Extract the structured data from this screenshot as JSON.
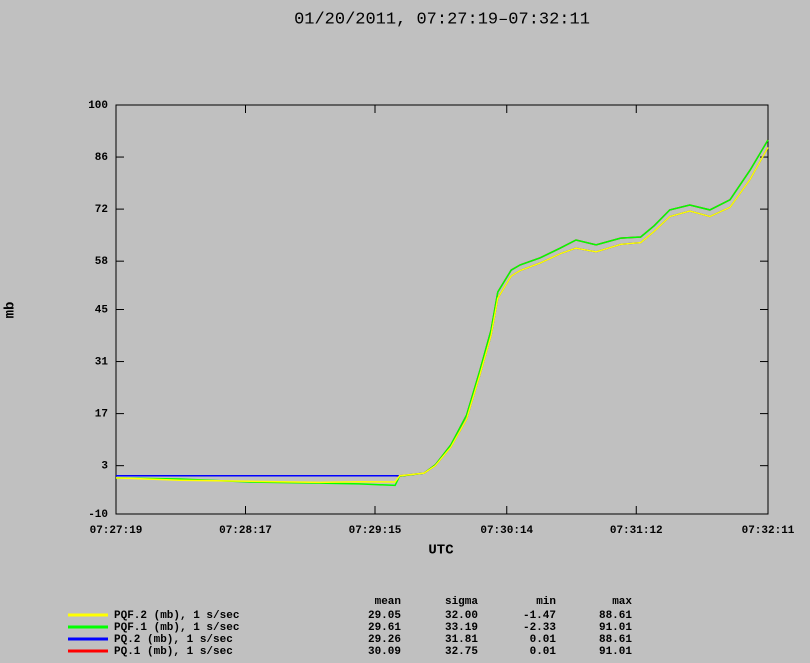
{
  "chart_data": {
    "type": "line",
    "title": "01/20/2011, 07:27:19–07:32:11",
    "xlabel": "UTC",
    "ylabel": "mb",
    "x": [
      0,
      28.7,
      60,
      91,
      109,
      125,
      127,
      138,
      143,
      150,
      157,
      163,
      168,
      171,
      177,
      181,
      190,
      199,
      206,
      215,
      226,
      235,
      241,
      248,
      257,
      266,
      275,
      284,
      292
    ],
    "xlim": [
      0,
      292
    ],
    "xticks": [
      {
        "value": 0,
        "label": "07:27:19"
      },
      {
        "value": 58,
        "label": "07:28:17"
      },
      {
        "value": 116,
        "label": "07:29:15"
      },
      {
        "value": 175,
        "label": "07:30:14"
      },
      {
        "value": 233,
        "label": "07:31:12"
      },
      {
        "value": 292,
        "label": "07:32:11"
      }
    ],
    "ylim": [
      -10,
      100
    ],
    "yticks": [
      -10,
      3,
      17,
      31,
      45,
      58,
      72,
      86,
      100
    ],
    "stat_columns": [
      "mean",
      "sigma",
      "min",
      "max"
    ],
    "series": [
      {
        "name": "PQ.1 (mb), 1 s/sec",
        "color": "#ff0000",
        "stats": [
          "30.09",
          "32.75",
          "0.01",
          "91.01"
        ],
        "values": [
          0.3,
          0.3,
          0.3,
          0.3,
          0.3,
          0.3,
          0.2,
          1.0,
          3.2,
          8.6,
          16.6,
          28.7,
          39.5,
          49.7,
          55.6,
          57.0,
          58.9,
          61.5,
          63.7,
          62.4,
          64.2,
          64.5,
          67.5,
          71.8,
          73.1,
          71.8,
          74.5,
          82.5,
          90.6
        ]
      },
      {
        "name": "PQ.2 (mb), 1 s/sec",
        "color": "#0000ff",
        "stats": [
          "29.26",
          "31.81",
          "0.01",
          "88.61"
        ],
        "values": [
          0.3,
          0.3,
          0.3,
          0.3,
          0.3,
          0.3,
          0.3,
          1.0,
          3.0,
          8.0,
          15.5,
          27.5,
          38.0,
          48.0,
          54.0,
          55.5,
          57.5,
          60.0,
          61.5,
          60.5,
          62.5,
          63.0,
          66.0,
          70.0,
          71.5,
          70.0,
          72.5,
          80.0,
          88.6
        ]
      },
      {
        "name": "PQF.1 (mb), 1 s/sec",
        "color": "#00ff00",
        "stats": [
          "29.61",
          "33.19",
          "-2.33",
          "91.01"
        ],
        "values": [
          -0.3,
          -0.6,
          -1.4,
          -1.7,
          -1.9,
          -2.3,
          0.2,
          1.0,
          3.2,
          8.6,
          16.6,
          28.7,
          39.5,
          49.7,
          55.6,
          57.0,
          58.9,
          61.5,
          63.7,
          62.4,
          64.2,
          64.5,
          67.5,
          71.8,
          73.1,
          71.8,
          74.5,
          82.5,
          90.6
        ]
      },
      {
        "name": "PQF.2 (mb), 1 s/sec",
        "color": "#ffff00",
        "stats": [
          "29.05",
          "32.00",
          "-1.47",
          "88.61"
        ],
        "values": [
          -0.3,
          -0.9,
          -1.2,
          -1.5,
          -1.3,
          -1.4,
          0.3,
          1.0,
          3.0,
          8.0,
          15.5,
          27.5,
          38.0,
          48.0,
          54.0,
          55.5,
          57.5,
          60.0,
          61.5,
          60.5,
          62.5,
          63.0,
          66.0,
          70.0,
          71.5,
          70.0,
          72.5,
          80.0,
          88.6
        ]
      }
    ]
  }
}
